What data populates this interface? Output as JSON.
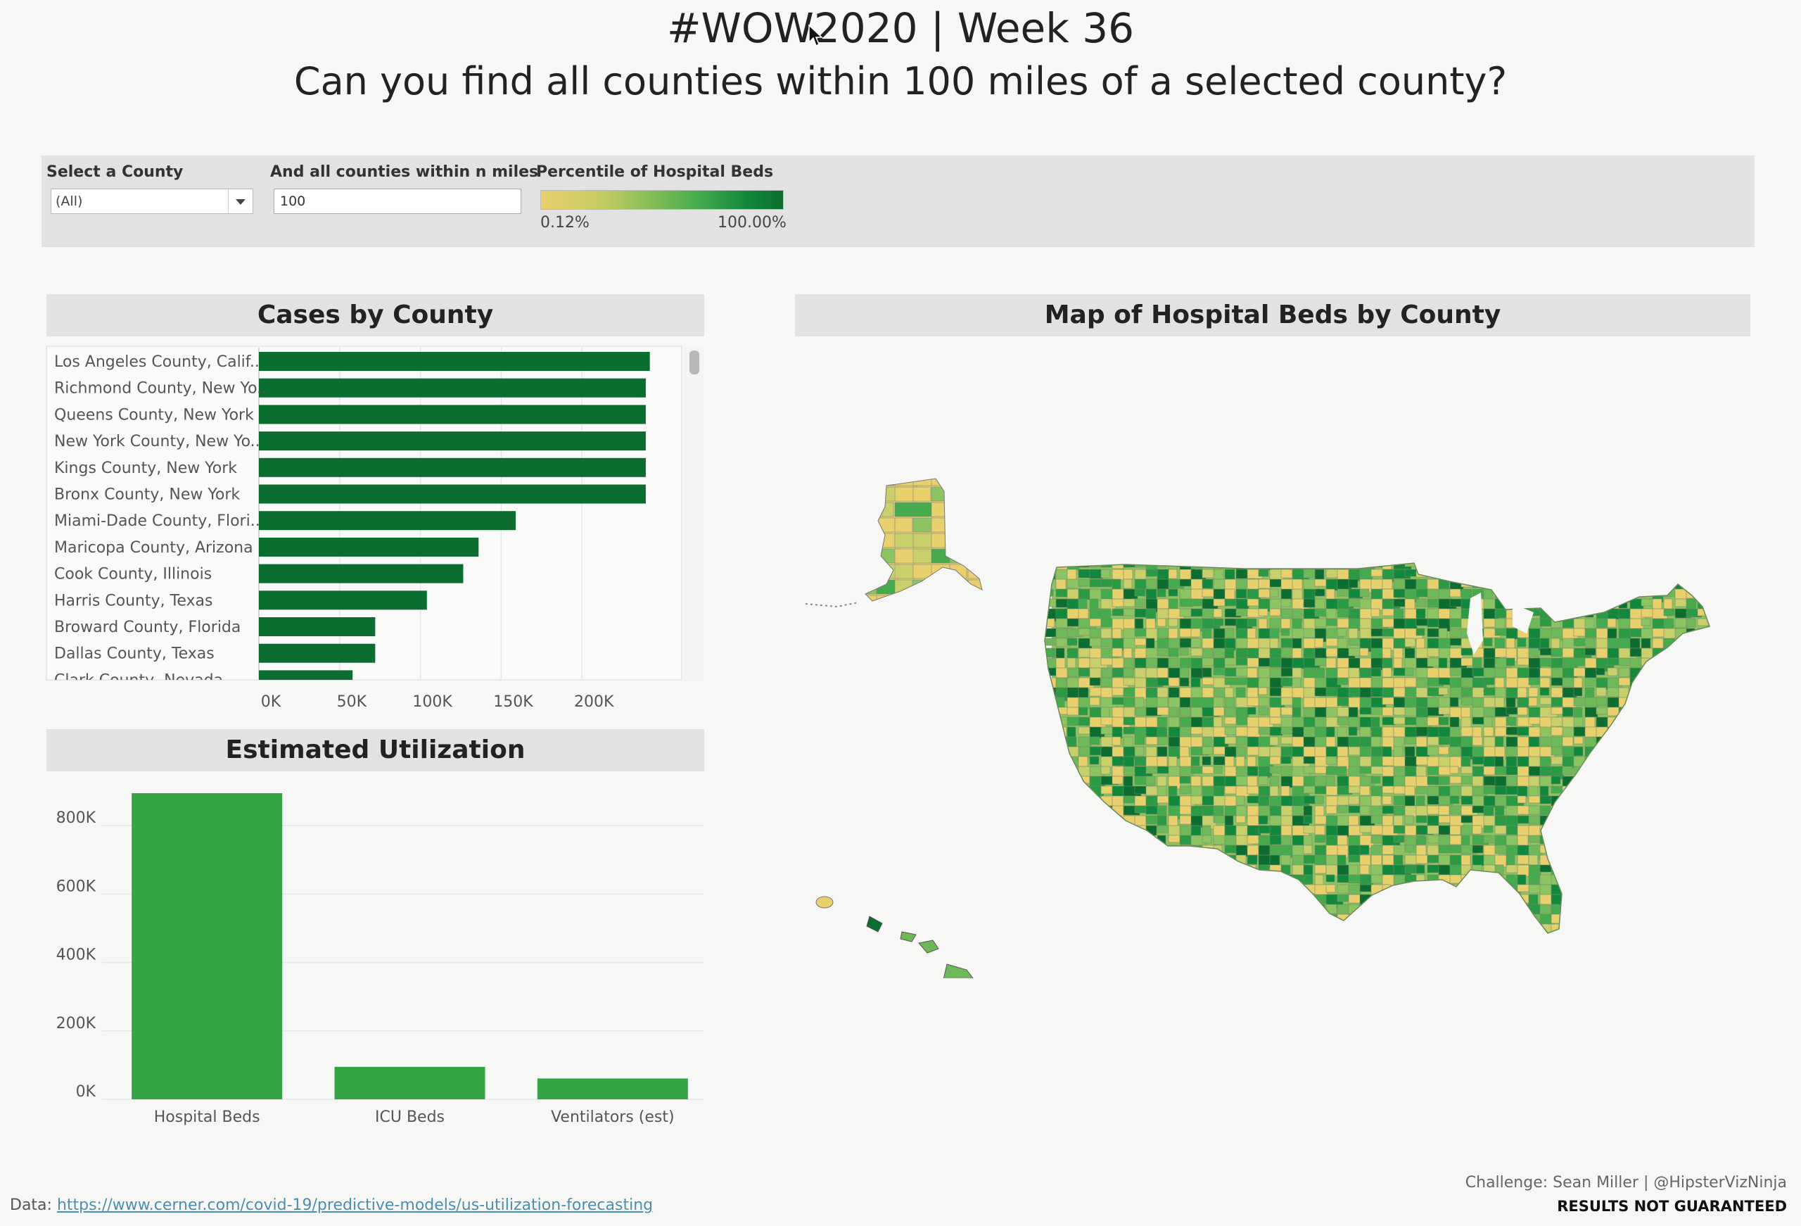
{
  "header": {
    "title_line1": "#WOW2020 | Week 36",
    "title_line2": "Can you find all counties within 100 miles of a selected county?"
  },
  "filters": {
    "county_label": "Select a County",
    "county_value": "(All)",
    "miles_label": "And all counties within n miles",
    "miles_value": "100",
    "percentile_label": "Percentile of Hospital Beds",
    "percentile_min": "0.12%",
    "percentile_max": "100.00%"
  },
  "sections": {
    "cases_title": "Cases by County",
    "utilization_title": "Estimated Utilization",
    "map_title": "Map of Hospital Beds by County"
  },
  "colors": {
    "bar_dark": "#0b6e30",
    "bar_medium": "#35a444",
    "scale_low": "#e8d06c",
    "scale_high": "#0b6e30"
  },
  "chart_data": [
    {
      "type": "bar",
      "orientation": "horizontal",
      "title": "Cases by County",
      "categories": [
        "Los Angeles County, Calif..",
        "Richmond County, New Yo..",
        "Queens County, New York",
        "New York County, New Yo..",
        "Kings County, New York",
        "Bronx County, New York",
        "Miami-Dade County, Flori..",
        "Maricopa County, Arizona",
        "Cook County, Illinois",
        "Harris County, Texas",
        "Broward County, Florida",
        "Dallas County, Texas",
        "Clark County, Nevada"
      ],
      "values": [
        242000,
        239500,
        239500,
        239500,
        239500,
        239500,
        159000,
        136000,
        126500,
        104000,
        72000,
        72000,
        58000
      ],
      "xlim": [
        0,
        260000
      ],
      "xticks": [
        "0K",
        "50K",
        "100K",
        "150K",
        "200K"
      ],
      "xtick_values": [
        0,
        50000,
        100000,
        150000,
        200000
      ],
      "grid": true
    },
    {
      "type": "bar",
      "orientation": "vertical",
      "title": "Estimated Utilization",
      "categories": [
        "Hospital Beds",
        "ICU Beds",
        "Ventilators (est)"
      ],
      "values": [
        895000,
        95000,
        61000
      ],
      "ylim": [
        0,
        930000
      ],
      "yticks": [
        "0K",
        "200K",
        "400K",
        "600K",
        "800K"
      ],
      "ytick_values": [
        0,
        200000,
        400000,
        600000,
        800000
      ],
      "grid": true
    }
  ],
  "map": {
    "type": "choropleth",
    "metric": "Percentile of Hospital Beds",
    "regions": [
      "Alaska",
      "Contiguous United States",
      "Hawaii"
    ]
  },
  "footer": {
    "data_prefix": "Data: ",
    "data_link": "https://www.cerner.com/covid-19/predictive-models/us-utilization-forecasting",
    "credit": "Challenge: Sean Miller | @HipsterVizNinja",
    "disclaimer": "RESULTS NOT GUARANTEED"
  }
}
